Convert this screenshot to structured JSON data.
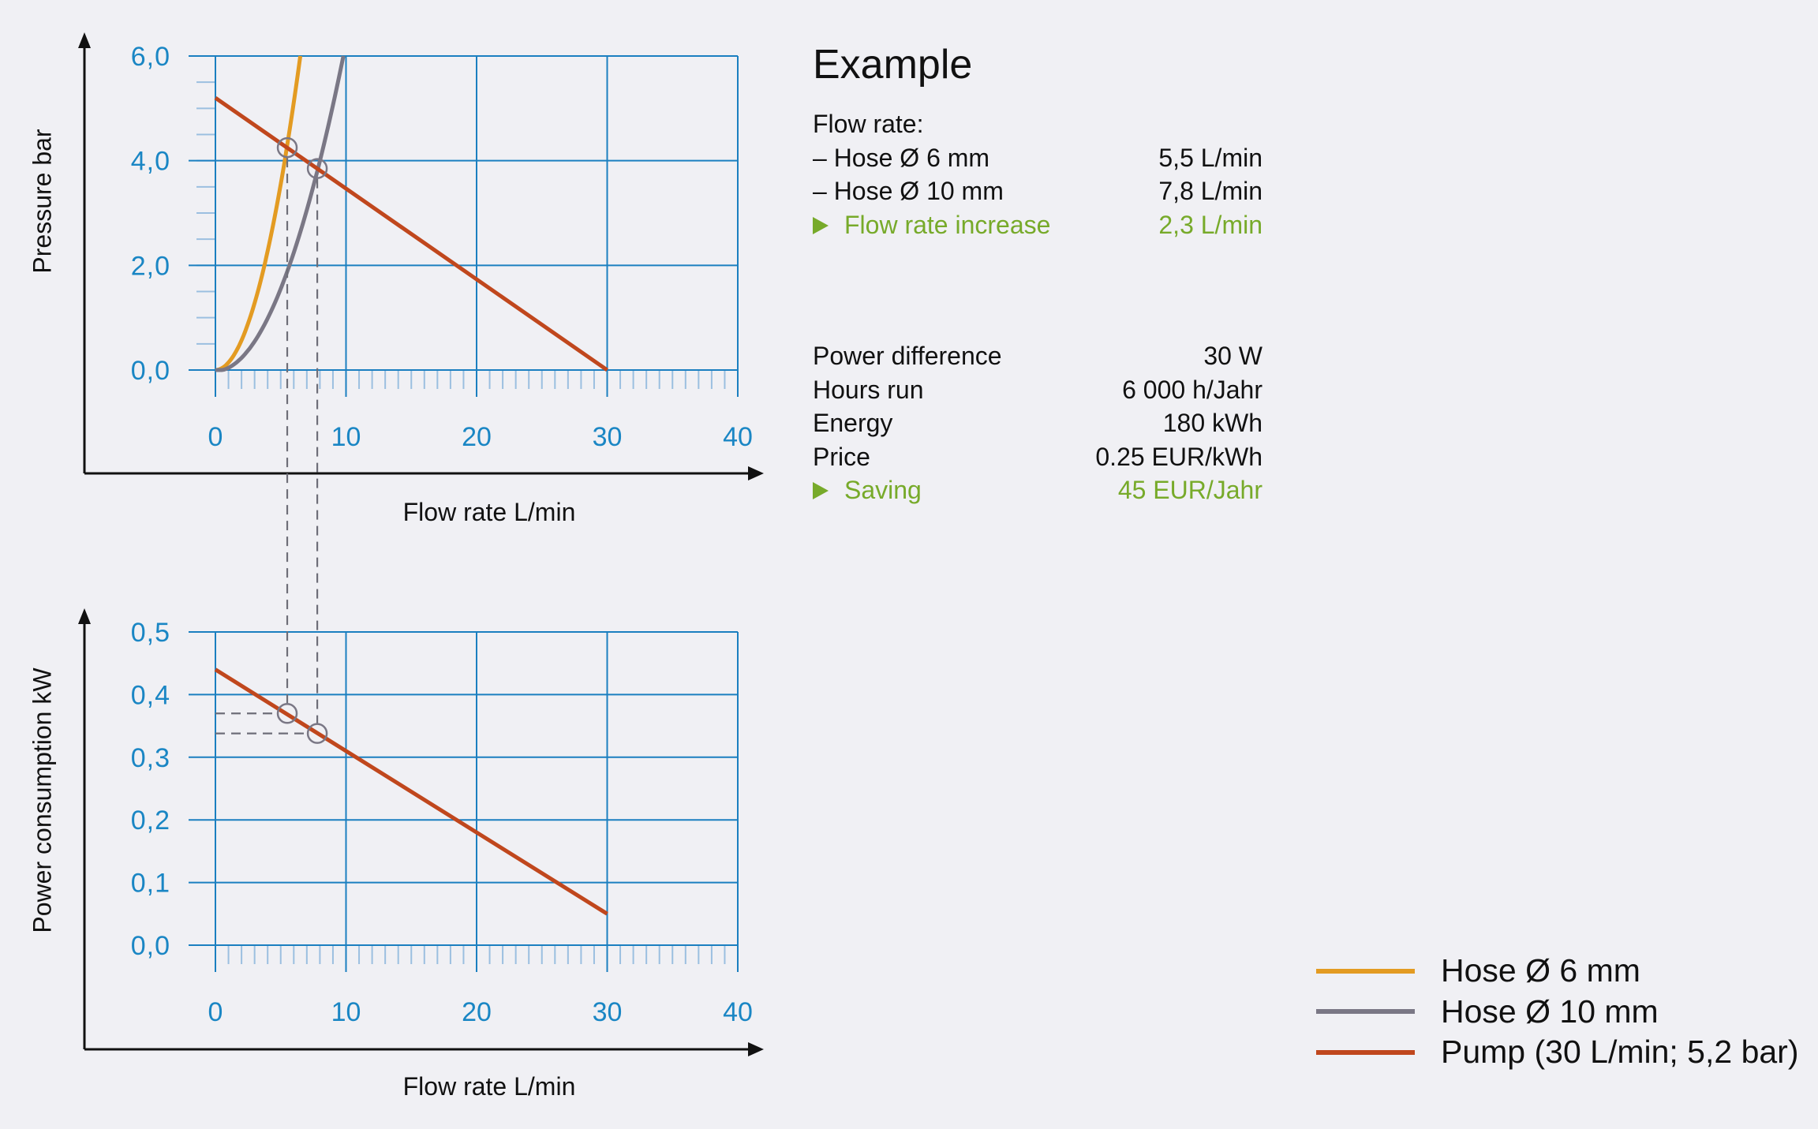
{
  "colors": {
    "grid": "#1b7fc0",
    "tick_label": "#1a86c4",
    "hose6": "#e39b22",
    "hose10": "#7a7785",
    "pump": "#c0471d",
    "accent_green": "#77aa2a",
    "axis": "#111111"
  },
  "chart_data": [
    {
      "type": "line",
      "title": "",
      "xlabel": "Flow rate  L/min",
      "ylabel": "Pressure  bar",
      "xlim": [
        0,
        40
      ],
      "ylim": [
        0,
        6
      ],
      "x_ticks": [
        "0",
        "10",
        "20",
        "30",
        "40"
      ],
      "y_ticks": [
        "0,0",
        "2,0",
        "4,0",
        "6,0"
      ],
      "grid": true,
      "series": [
        {
          "name": "Hose Ø 6 mm",
          "model": "quadratic",
          "coef": 0.142,
          "x_end": 6.5
        },
        {
          "name": "Hose Ø 10 mm",
          "model": "quadratic",
          "coef": 0.0625,
          "x_end": 9.8
        },
        {
          "name": "Pump (30 L/min; 5,2 bar)",
          "x": [
            0,
            30
          ],
          "y": [
            5.2,
            0
          ]
        }
      ],
      "operating_points": [
        {
          "x": 5.5,
          "y": 4.25
        },
        {
          "x": 7.8,
          "y": 3.85
        }
      ]
    },
    {
      "type": "line",
      "title": "",
      "xlabel": "Flow rate  L/min",
      "ylabel": "Power consumption  kW",
      "xlim": [
        0,
        40
      ],
      "ylim": [
        0,
        0.5
      ],
      "x_ticks": [
        "0",
        "10",
        "20",
        "30",
        "40"
      ],
      "y_ticks": [
        "0,0",
        "0,1",
        "0,2",
        "0,3",
        "0,4",
        "0,5"
      ],
      "grid": true,
      "series": [
        {
          "name": "Pump (30 L/min; 5,2 bar)",
          "x": [
            0,
            30
          ],
          "y": [
            0.44,
            0.05
          ]
        }
      ],
      "operating_points": [
        {
          "x": 5.5,
          "y": 0.37
        },
        {
          "x": 7.8,
          "y": 0.338
        }
      ]
    }
  ],
  "example": {
    "title": "Example",
    "flow_heading": "Flow rate:",
    "flow_rows": [
      {
        "label": "– Hose Ø 6 mm",
        "value": "5,5 L/min"
      },
      {
        "label": "– Hose Ø 10 mm",
        "value": "7,8 L/min"
      }
    ],
    "flow_result": {
      "label": "Flow rate increase",
      "value": "2,3 L/min"
    },
    "cost_rows": [
      {
        "label": "Power difference",
        "value": "30 W"
      },
      {
        "label": "Hours run",
        "value": "6 000 h/Jahr"
      },
      {
        "label": "Energy",
        "value": "180 kWh"
      },
      {
        "label": "Price",
        "value": "0.25 EUR/kWh"
      }
    ],
    "cost_result": {
      "label": "Saving",
      "value": "45 EUR/Jahr"
    }
  },
  "legend": [
    {
      "label": "Hose Ø 6 mm",
      "color": "#e39b22"
    },
    {
      "label": "Hose Ø 10 mm",
      "color": "#7a7785"
    },
    {
      "label": "Pump (30 L/min; 5,2 bar)",
      "color": "#c0471d"
    }
  ]
}
